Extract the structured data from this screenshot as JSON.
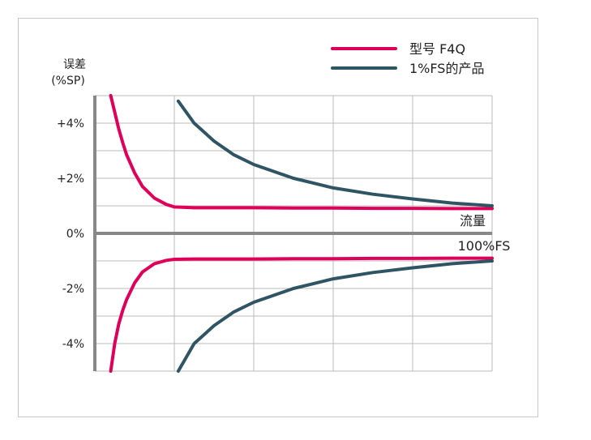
{
  "chart_data": {
    "type": "line",
    "title": "",
    "ylabel_line1": "误差",
    "ylabel_line2": "(%SP)",
    "xlabel_line1": "流量",
    "xlabel_line2": "100%FS",
    "ylim": [
      -5,
      5
    ],
    "xlim": [
      0,
      100
    ],
    "grid": true,
    "legend_position": "top-right",
    "yticks": [
      {
        "value": 4,
        "label": "+4%"
      },
      {
        "value": 2,
        "label": "+2%"
      },
      {
        "value": 0,
        "label": "0%"
      },
      {
        "value": -2,
        "label": "-2%"
      },
      {
        "value": -4,
        "label": "-4%"
      }
    ],
    "colors": {
      "f4q": "#e0005a",
      "fs": "#2f5565",
      "axis": "#888888",
      "grid": "#bbbbbb",
      "frame": "#c8c8c8"
    },
    "series": [
      {
        "name": "型号 F4Q",
        "color": "#e0005a",
        "upper": {
          "x": [
            4,
            5,
            6,
            7,
            8,
            10,
            12,
            15,
            18,
            20,
            25,
            30,
            40,
            50,
            60,
            70,
            80,
            90,
            100
          ],
          "y": [
            5.0,
            4.4,
            3.8,
            3.3,
            2.85,
            2.2,
            1.7,
            1.28,
            1.05,
            0.96,
            0.93,
            0.93,
            0.93,
            0.92,
            0.92,
            0.91,
            0.91,
            0.9,
            0.9
          ]
        },
        "lower": {
          "x": [
            4,
            5,
            6,
            7,
            8,
            10,
            12,
            15,
            18,
            20,
            25,
            30,
            40,
            50,
            60,
            70,
            80,
            90,
            100
          ],
          "y": [
            -5.0,
            -4.0,
            -3.3,
            -2.8,
            -2.4,
            -1.8,
            -1.4,
            -1.1,
            -0.98,
            -0.94,
            -0.93,
            -0.93,
            -0.93,
            -0.92,
            -0.92,
            -0.91,
            -0.91,
            -0.9,
            -0.9
          ]
        }
      },
      {
        "name": "1%FS的产品",
        "color": "#2f5565",
        "upper": {
          "x": [
            21,
            25,
            30,
            35,
            40,
            50,
            60,
            70,
            80,
            90,
            100
          ],
          "y": [
            4.8,
            4.0,
            3.35,
            2.85,
            2.5,
            2.0,
            1.65,
            1.42,
            1.25,
            1.1,
            1.0
          ]
        },
        "lower": {
          "x": [
            21,
            25,
            30,
            35,
            40,
            50,
            60,
            70,
            80,
            90,
            100
          ],
          "y": [
            -5.0,
            -4.0,
            -3.35,
            -2.85,
            -2.5,
            -2.0,
            -1.65,
            -1.42,
            -1.25,
            -1.1,
            -1.0
          ]
        }
      }
    ]
  }
}
